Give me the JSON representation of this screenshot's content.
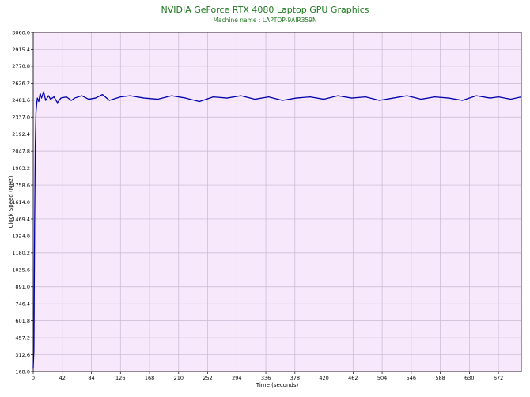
{
  "title": "NVIDIA GeForce RTX 4080 Laptop GPU Graphics",
  "subtitle": "Machine name : LAPTOP-9AIR359N",
  "colors": {
    "plot_bg": "#f7e8fb",
    "grid": "#c9b8d2",
    "line": "#0000aa",
    "title": "#1f7a1f"
  },
  "chart_data": {
    "type": "line",
    "title": "NVIDIA GeForce RTX 4080 Laptop GPU Graphics",
    "subtitle": "Machine name : LAPTOP-9AIR359N",
    "xlabel": "Time (seconds)",
    "ylabel": "Clock Speed (MHz)",
    "xlim": [
      0,
      705
    ],
    "ylim": [
      168.0,
      3060.0
    ],
    "xticks": [
      0,
      42,
      84,
      126,
      168,
      210,
      252,
      294,
      336,
      378,
      420,
      462,
      504,
      546,
      588,
      630,
      672
    ],
    "yticks": [
      168.0,
      312.6,
      457.2,
      601.8,
      746.4,
      891.0,
      1035.6,
      1180.2,
      1324.8,
      1469.4,
      1614.0,
      1758.6,
      1903.2,
      2047.8,
      2192.4,
      2337.0,
      2481.6,
      2626.2,
      2770.8,
      2915.4,
      3060.0
    ],
    "grid": true,
    "series": [
      {
        "values_x": [
          0,
          1,
          2,
          3,
          4,
          5,
          6,
          8,
          10,
          12,
          15,
          18,
          22,
          25,
          30,
          35,
          40,
          48,
          55,
          60,
          70,
          80,
          90,
          100,
          110,
          126,
          140,
          160,
          180,
          200,
          220,
          240,
          260,
          280,
          300,
          320,
          340,
          360,
          380,
          400,
          420,
          440,
          460,
          480,
          500,
          520,
          540,
          560,
          580,
          600,
          620,
          640,
          660,
          672,
          690,
          705
        ],
        "values_y": [
          200,
          350,
          1400,
          2100,
          2380,
          2450,
          2500,
          2470,
          2540,
          2500,
          2555,
          2480,
          2520,
          2490,
          2510,
          2460,
          2500,
          2510,
          2480,
          2500,
          2520,
          2490,
          2500,
          2530,
          2480,
          2510,
          2520,
          2500,
          2490,
          2520,
          2500,
          2470,
          2510,
          2500,
          2520,
          2490,
          2510,
          2480,
          2500,
          2510,
          2490,
          2520,
          2500,
          2510,
          2480,
          2500,
          2520,
          2490,
          2510,
          2500,
          2480,
          2520,
          2500,
          2510,
          2490,
          2510
        ]
      }
    ]
  }
}
